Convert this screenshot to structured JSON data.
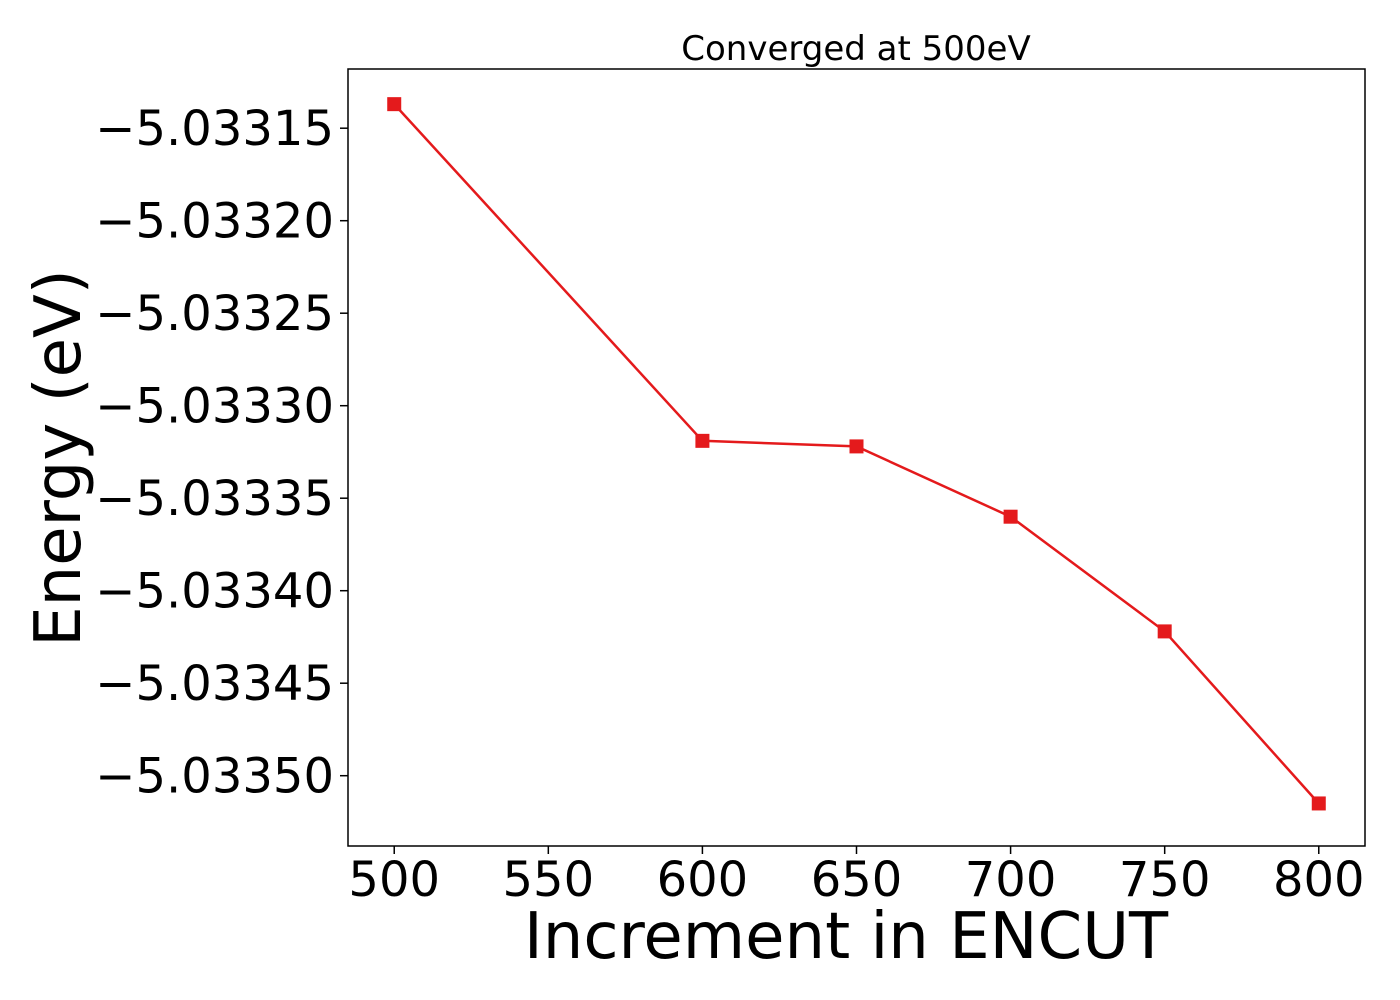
{
  "chart_data": {
    "type": "line",
    "title": "Converged at 500eV",
    "xlabel": "Increment in ENCUT",
    "ylabel": "Energy (eV)",
    "x": [
      500,
      600,
      650,
      700,
      750,
      800
    ],
    "series": [
      {
        "values": [
          -5.033137,
          -5.033319,
          -5.033322,
          -5.03336,
          -5.033422,
          -5.033515
        ],
        "color": "#e41a1c",
        "marker": "square"
      }
    ],
    "xlim": [
      485,
      815
    ],
    "ylim": [
      -5.033538,
      -5.033118
    ],
    "xticks": [
      500,
      550,
      600,
      650,
      700,
      750,
      800
    ],
    "xtick_labels": [
      "500",
      "550",
      "600",
      "650",
      "700",
      "750",
      "800"
    ],
    "yticks": [
      -5.03315,
      -5.0332,
      -5.03325,
      -5.0333,
      -5.03335,
      -5.0334,
      -5.03345,
      -5.0335
    ],
    "ytick_labels": [
      "−5.03315",
      "−5.03320",
      "−5.03325",
      "−5.03330",
      "−5.03335",
      "−5.03340",
      "−5.03345",
      "−5.03350"
    ],
    "grid": false,
    "legend": "none"
  }
}
